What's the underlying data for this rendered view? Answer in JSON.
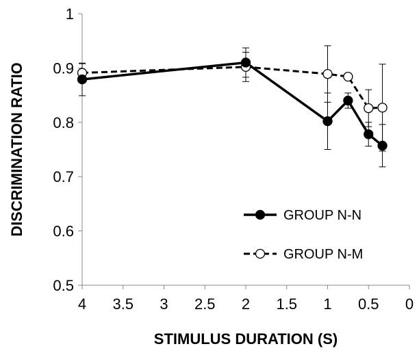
{
  "chart_data": {
    "type": "line",
    "xlabel": "STIMULUS DURATION (S)",
    "ylabel": "DISCRIMINATION RATIO",
    "xlim": [
      4,
      0
    ],
    "x_reversed": true,
    "ylim": [
      0.5,
      1
    ],
    "x_ticks": [
      "4",
      "3.5",
      "3",
      "2.5",
      "2",
      "1.5",
      "1",
      "0.5",
      "0"
    ],
    "y_ticks": [
      "0.5",
      "0.6",
      "0.7",
      "0.8",
      "0.9",
      "1"
    ],
    "x_tick_values": [
      4,
      3.5,
      3,
      2.5,
      2,
      1.5,
      1,
      0.5,
      0
    ],
    "y_tick_values": [
      0.5,
      0.6,
      0.7,
      0.8,
      0.9,
      1.0
    ],
    "grid": false,
    "legend_position": "lower-right",
    "series": [
      {
        "name": "GROUP N-N",
        "line_style": "solid",
        "marker": "filled-circle",
        "color": "#000000",
        "x": [
          4,
          2,
          1,
          0.75,
          0.5,
          0.33
        ],
        "y": [
          0.879,
          0.91,
          0.802,
          0.84,
          0.778,
          0.757
        ],
        "error": [
          0.03,
          0.027,
          0.052,
          0.014,
          0.022,
          0.039
        ]
      },
      {
        "name": "GROUP N-M",
        "line_style": "dashed",
        "marker": "open-circle",
        "color": "#000000",
        "x": [
          4,
          2,
          1,
          0.75,
          0.5,
          0.33
        ],
        "y": [
          0.891,
          0.902,
          0.889,
          0.884,
          0.826,
          0.827
        ],
        "error": [
          0.017,
          0.027,
          0.052,
          0.0,
          0.034,
          0.08
        ]
      }
    ]
  }
}
